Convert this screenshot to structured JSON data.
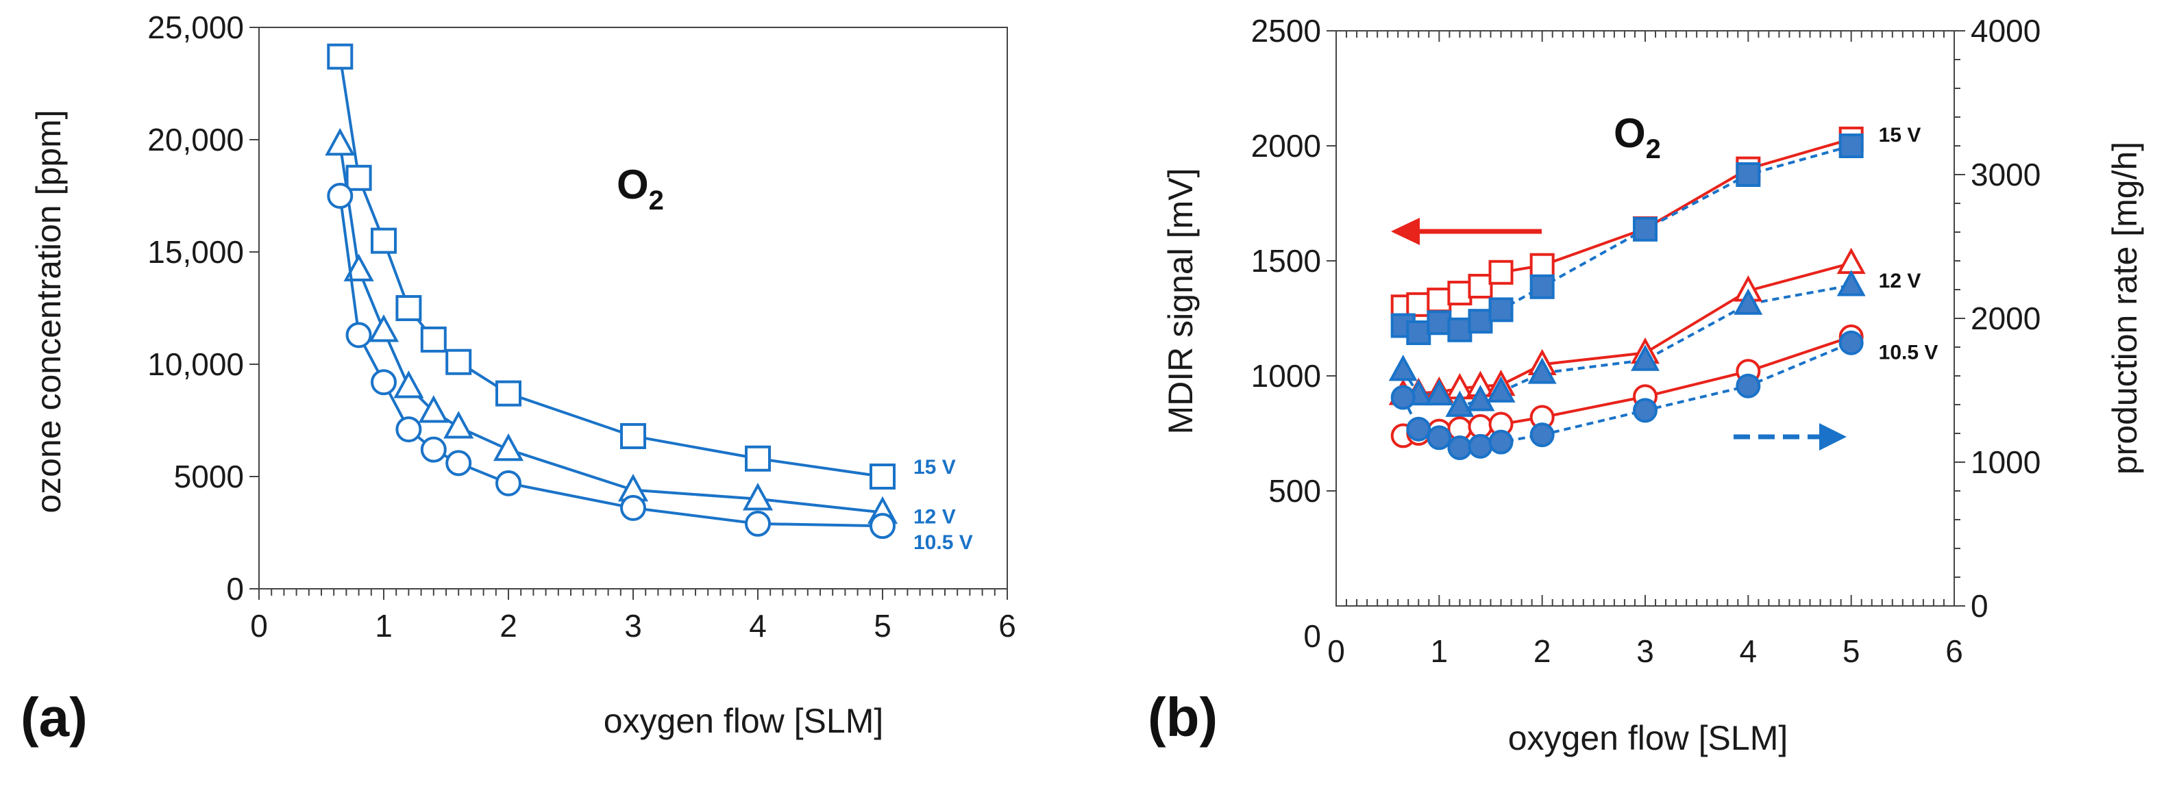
{
  "colors": {
    "blue": "#1a73c8",
    "red": "#e8231b",
    "blue_fill": "#3e7cc7",
    "axis": "#444444"
  },
  "chart_data": [
    {
      "panel": "(a)",
      "type": "line",
      "annotation": "O",
      "annotation_subscript": "2",
      "xlabel": "oxygen flow [SLM]",
      "ylabel": "ozone concentration [ppm]",
      "xlim": [
        0,
        6
      ],
      "ylim": [
        0,
        25000
      ],
      "xticks": [
        0,
        1,
        2,
        3,
        4,
        5,
        6
      ],
      "xtick_labels": [
        "0",
        "1",
        "2",
        "3",
        "4",
        "5",
        "6"
      ],
      "yticks": [
        0,
        5000,
        10000,
        15000,
        20000,
        25000
      ],
      "ytick_labels": [
        "0",
        "5000",
        "10,000",
        "15,000",
        "20,000",
        "25,000"
      ],
      "grid": false,
      "series": [
        {
          "name": "15 V",
          "marker": "square",
          "filled": false,
          "x": [
            0.65,
            0.8,
            1.0,
            1.2,
            1.4,
            1.6,
            2.0,
            3.0,
            4.0,
            5.0
          ],
          "y": [
            23700,
            18300,
            15500,
            12500,
            11100,
            10100,
            8700,
            6800,
            5800,
            5000
          ]
        },
        {
          "name": "12 V",
          "marker": "triangle",
          "filled": false,
          "x": [
            0.65,
            0.8,
            1.0,
            1.2,
            1.4,
            1.6,
            2.0,
            3.0,
            4.0,
            5.0
          ],
          "y": [
            19800,
            14200,
            11500,
            9000,
            7900,
            7200,
            6200,
            4400,
            4000,
            3400
          ]
        },
        {
          "name": "10.5 V",
          "marker": "circle",
          "filled": false,
          "x": [
            0.65,
            0.8,
            1.0,
            1.2,
            1.4,
            1.6,
            2.0,
            3.0,
            4.0,
            5.0
          ],
          "y": [
            17500,
            11300,
            9200,
            7100,
            6200,
            5600,
            4700,
            3600,
            2900,
            2800
          ]
        }
      ]
    },
    {
      "panel": "(b)",
      "type": "line",
      "annotation": "O",
      "annotation_subscript": "2",
      "xlabel": "oxygen flow [SLM]",
      "ylabel": "MDIR signal [mV]",
      "y2label": "production rate  [mg/h]",
      "xlim": [
        0,
        6
      ],
      "ylim": [
        0,
        2500
      ],
      "y2lim": [
        0,
        4000
      ],
      "xticks": [
        0,
        1,
        2,
        3,
        4,
        5,
        6
      ],
      "xtick_labels": [
        "0",
        "1",
        "2",
        "3",
        "4",
        "5",
        "6"
      ],
      "yticks": [
        500,
        1000,
        1500,
        2000,
        2500
      ],
      "ytick_labels": [
        "500",
        "1000",
        "1500",
        "2000",
        "2500"
      ],
      "y_zero_label": "0",
      "y2ticks": [
        0,
        1000,
        2000,
        3000,
        4000
      ],
      "y2tick_labels": [
        "0",
        "1000",
        "2000",
        "3000",
        "4000"
      ],
      "grid": false,
      "series_labels": [
        "15 V",
        "12 V",
        "10.5 V"
      ],
      "series": [
        {
          "group": "15 V",
          "axis": "left",
          "marker": "square",
          "filled": false,
          "color": "red",
          "x": [
            0.65,
            0.8,
            1.0,
            1.2,
            1.4,
            1.6,
            2.0,
            3.0,
            4.0,
            5.0
          ],
          "y": [
            1300,
            1310,
            1330,
            1360,
            1390,
            1450,
            1480,
            1640,
            1900,
            2030
          ]
        },
        {
          "group": "15 V",
          "axis": "right",
          "marker": "square",
          "filled": true,
          "color": "blue",
          "x": [
            0.65,
            0.8,
            1.0,
            1.2,
            1.4,
            1.6,
            2.0,
            3.0,
            4.0,
            5.0
          ],
          "y": [
            1950,
            1900,
            1970,
            1920,
            1980,
            2060,
            2220,
            2620,
            3000,
            3200
          ]
        },
        {
          "group": "12 V",
          "axis": "left",
          "marker": "triangle",
          "filled": false,
          "color": "red",
          "x": [
            0.65,
            0.8,
            1.0,
            1.2,
            1.4,
            1.6,
            2.0,
            3.0,
            4.0,
            5.0
          ],
          "y": [
            920,
            925,
            930,
            945,
            955,
            960,
            1050,
            1100,
            1370,
            1490
          ]
        },
        {
          "group": "12 V",
          "axis": "right",
          "marker": "triangle",
          "filled": true,
          "color": "blue",
          "x": [
            0.65,
            0.8,
            1.0,
            1.2,
            1.4,
            1.6,
            2.0,
            3.0,
            4.0,
            5.0
          ],
          "y": [
            1640,
            1470,
            1470,
            1390,
            1430,
            1490,
            1620,
            1710,
            2100,
            2230
          ]
        },
        {
          "group": "10.5 V",
          "axis": "left",
          "marker": "circle",
          "filled": false,
          "color": "red",
          "x": [
            0.65,
            0.8,
            1.0,
            1.2,
            1.4,
            1.6,
            2.0,
            3.0,
            4.0,
            5.0
          ],
          "y": [
            740,
            750,
            760,
            770,
            780,
            790,
            820,
            910,
            1020,
            1170
          ]
        },
        {
          "group": "10.5 V",
          "axis": "right",
          "marker": "circle",
          "filled": true,
          "color": "blue",
          "x": [
            0.65,
            0.8,
            1.0,
            1.2,
            1.4,
            1.6,
            2.0,
            3.0,
            4.0,
            5.0
          ],
          "y": [
            1450,
            1230,
            1170,
            1100,
            1110,
            1140,
            1190,
            1360,
            1530,
            1830
          ]
        }
      ]
    }
  ]
}
